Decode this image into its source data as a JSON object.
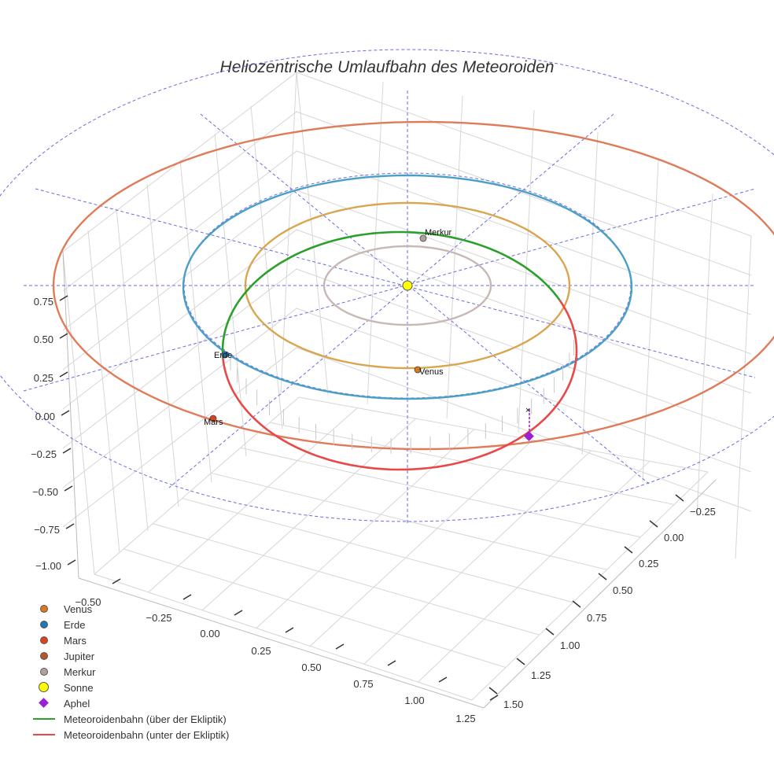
{
  "chart_data": {
    "type": "3d-orbit",
    "title": "Heliozentrische Umlaufbahn des Meteoroiden",
    "x_ticks": [
      "−0.50",
      "−0.25",
      "0.00",
      "0.25",
      "0.50",
      "0.75",
      "1.00",
      "1.25"
    ],
    "y_ticks": [
      "−0.25",
      "0.00",
      "0.25",
      "0.50",
      "0.75",
      "1.00",
      "1.25",
      "1.50"
    ],
    "z_ticks": [
      "0.75",
      "0.50",
      "0.25",
      "0.00",
      "−0.25",
      "−0.50",
      "−0.75",
      "−1.00"
    ],
    "orbits": [
      {
        "name": "Merkur",
        "radius": 0.39,
        "color": "#c7b8b5"
      },
      {
        "name": "Venus",
        "radius": 0.72,
        "color": "#d9a54f"
      },
      {
        "name": "Erde",
        "radius": 1.0,
        "color": "#4a9fc8"
      },
      {
        "name": "Mars",
        "radius": 1.52,
        "color": "#e07b5a"
      }
    ],
    "planets": [
      {
        "name": "Venus",
        "label": "Venus",
        "color": "#d9781e"
      },
      {
        "name": "Erde",
        "label": "Erde",
        "color": "#1f77b4"
      },
      {
        "name": "Mars",
        "label": "Mars",
        "color": "#d9441f"
      },
      {
        "name": "Merkur",
        "label": "Merkur",
        "color": "#b3a09c"
      }
    ],
    "meteoroid": {
      "above_label": "Meteoroidenbahn (über der Ekliptik)",
      "below_label": "Meteoroidenbahn (unter der Ekliptik)",
      "above_color": "#2ca02c",
      "below_color": "#e84848"
    },
    "aphel_color": "#9b1fd6",
    "sun_color": "#ffff00"
  },
  "legend": [
    {
      "label": "Venus",
      "kind": "dot",
      "color": "#d9781e"
    },
    {
      "label": "Erde",
      "kind": "dot",
      "color": "#1f77b4"
    },
    {
      "label": "Mars",
      "kind": "dot",
      "color": "#d9441f"
    },
    {
      "label": "Jupiter",
      "kind": "dot",
      "color": "#b0582a"
    },
    {
      "label": "Merkur",
      "kind": "dot",
      "color": "#b3a09c"
    },
    {
      "label": "Sonne",
      "kind": "big",
      "color": "#ffff00"
    },
    {
      "label": "Aphel",
      "kind": "diamond",
      "color": "#9b1fd6"
    },
    {
      "label": "Meteoroidenbahn (über der Ekliptik)",
      "kind": "line",
      "color": "#2ca02c"
    },
    {
      "label": "Meteoroidenbahn (unter der Ekliptik)",
      "kind": "line",
      "color": "#e84848"
    }
  ]
}
